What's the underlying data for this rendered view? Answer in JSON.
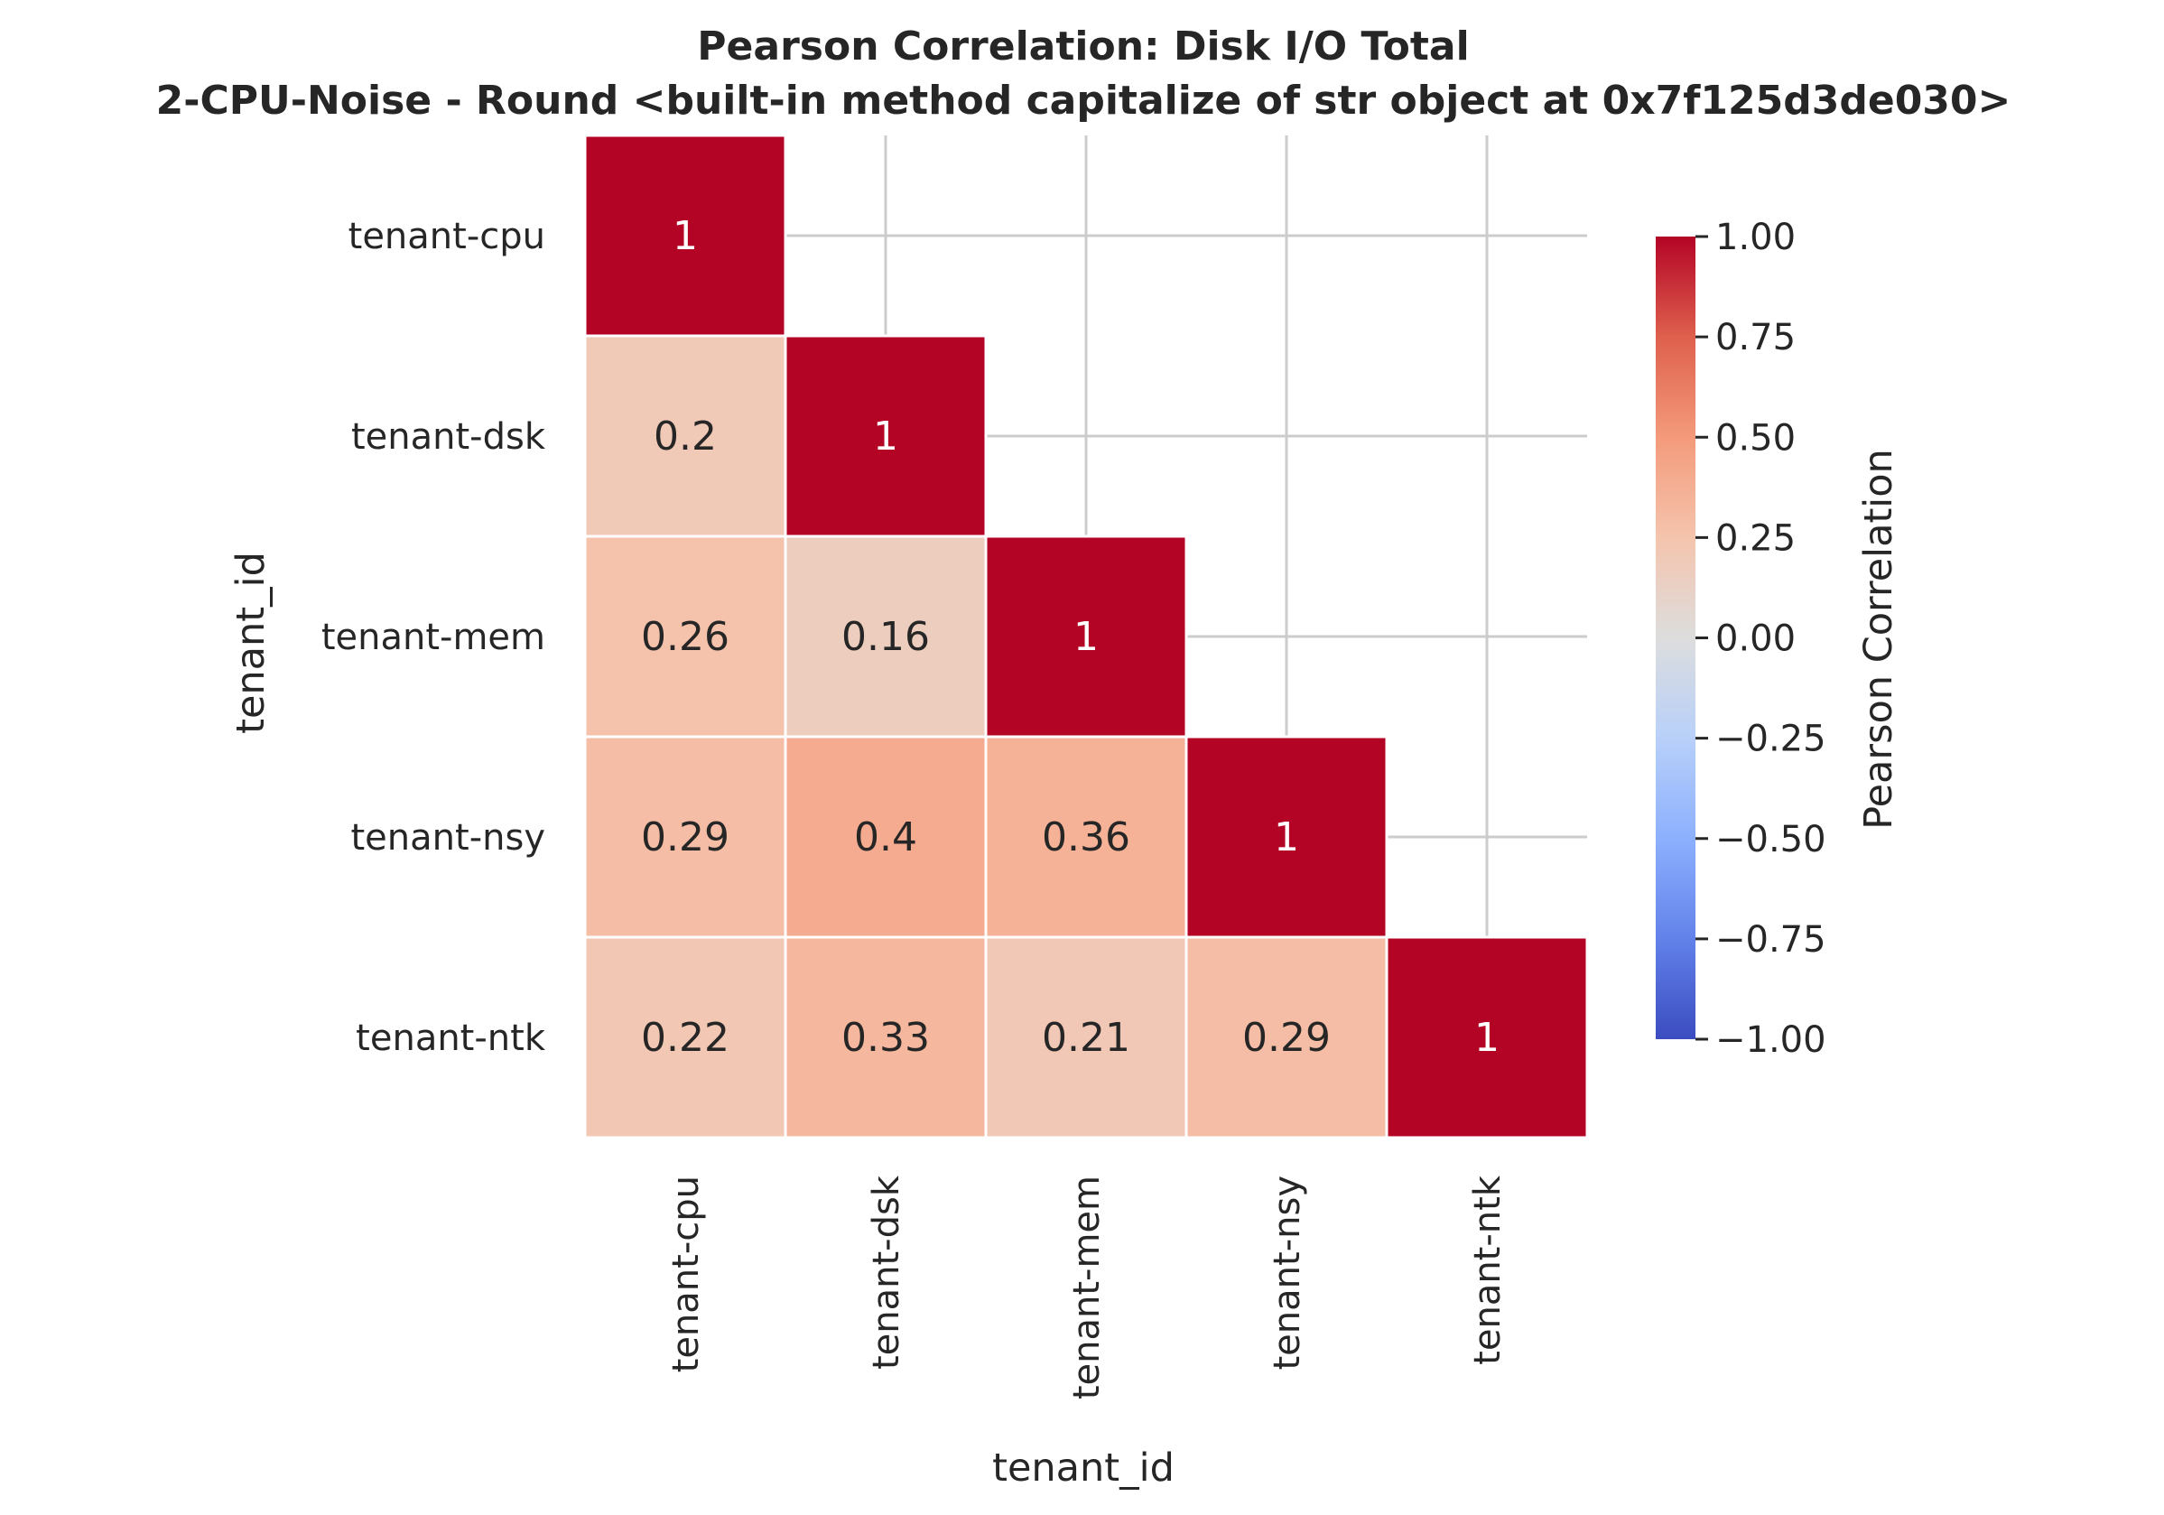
{
  "chart_data": {
    "type": "heatmap",
    "title": "Pearson Correlation: Disk I/O Total",
    "subtitle": "2-CPU-Noise - Round <built-in method capitalize of str object at 0x7f125d3de030>",
    "xlabel": "tenant_id",
    "ylabel": "tenant_id",
    "rows": [
      "tenant-cpu",
      "tenant-dsk",
      "tenant-mem",
      "tenant-nsy",
      "tenant-ntk"
    ],
    "cols": [
      "tenant-cpu",
      "tenant-dsk",
      "tenant-mem",
      "tenant-nsy",
      "tenant-ntk"
    ],
    "mask": "upper-triangle",
    "values": [
      [
        1,
        null,
        null,
        null,
        null
      ],
      [
        0.2,
        1,
        null,
        null,
        null
      ],
      [
        0.26,
        0.16,
        1,
        null,
        null
      ],
      [
        0.29,
        0.4,
        0.36,
        1,
        null
      ],
      [
        0.22,
        0.33,
        0.21,
        0.29,
        1
      ]
    ],
    "cell_labels": [
      [
        "1",
        "",
        "",
        "",
        ""
      ],
      [
        "0.2",
        "1",
        "",
        "",
        ""
      ],
      [
        "0.26",
        "0.16",
        "1",
        "",
        ""
      ],
      [
        "0.29",
        "0.4",
        "0.36",
        "1",
        ""
      ],
      [
        "0.22",
        "0.33",
        "0.21",
        "0.29",
        "1"
      ]
    ],
    "colormap": "coolwarm",
    "vmin": -1,
    "vmax": 1,
    "colorbar": {
      "label": "Pearson Correlation",
      "ticks": [
        1.0,
        0.75,
        0.5,
        0.25,
        0.0,
        -0.25,
        -0.5,
        -0.75,
        -1.0
      ],
      "tick_labels": [
        "1.00",
        "0.75",
        "0.50",
        "0.25",
        "0.00",
        "−0.25",
        "−0.50",
        "−0.75",
        "−1.00"
      ]
    },
    "grid": true,
    "colors": {
      "grid": "#cccccc",
      "cell_border": "#ffffff",
      "text": "#262626"
    }
  }
}
